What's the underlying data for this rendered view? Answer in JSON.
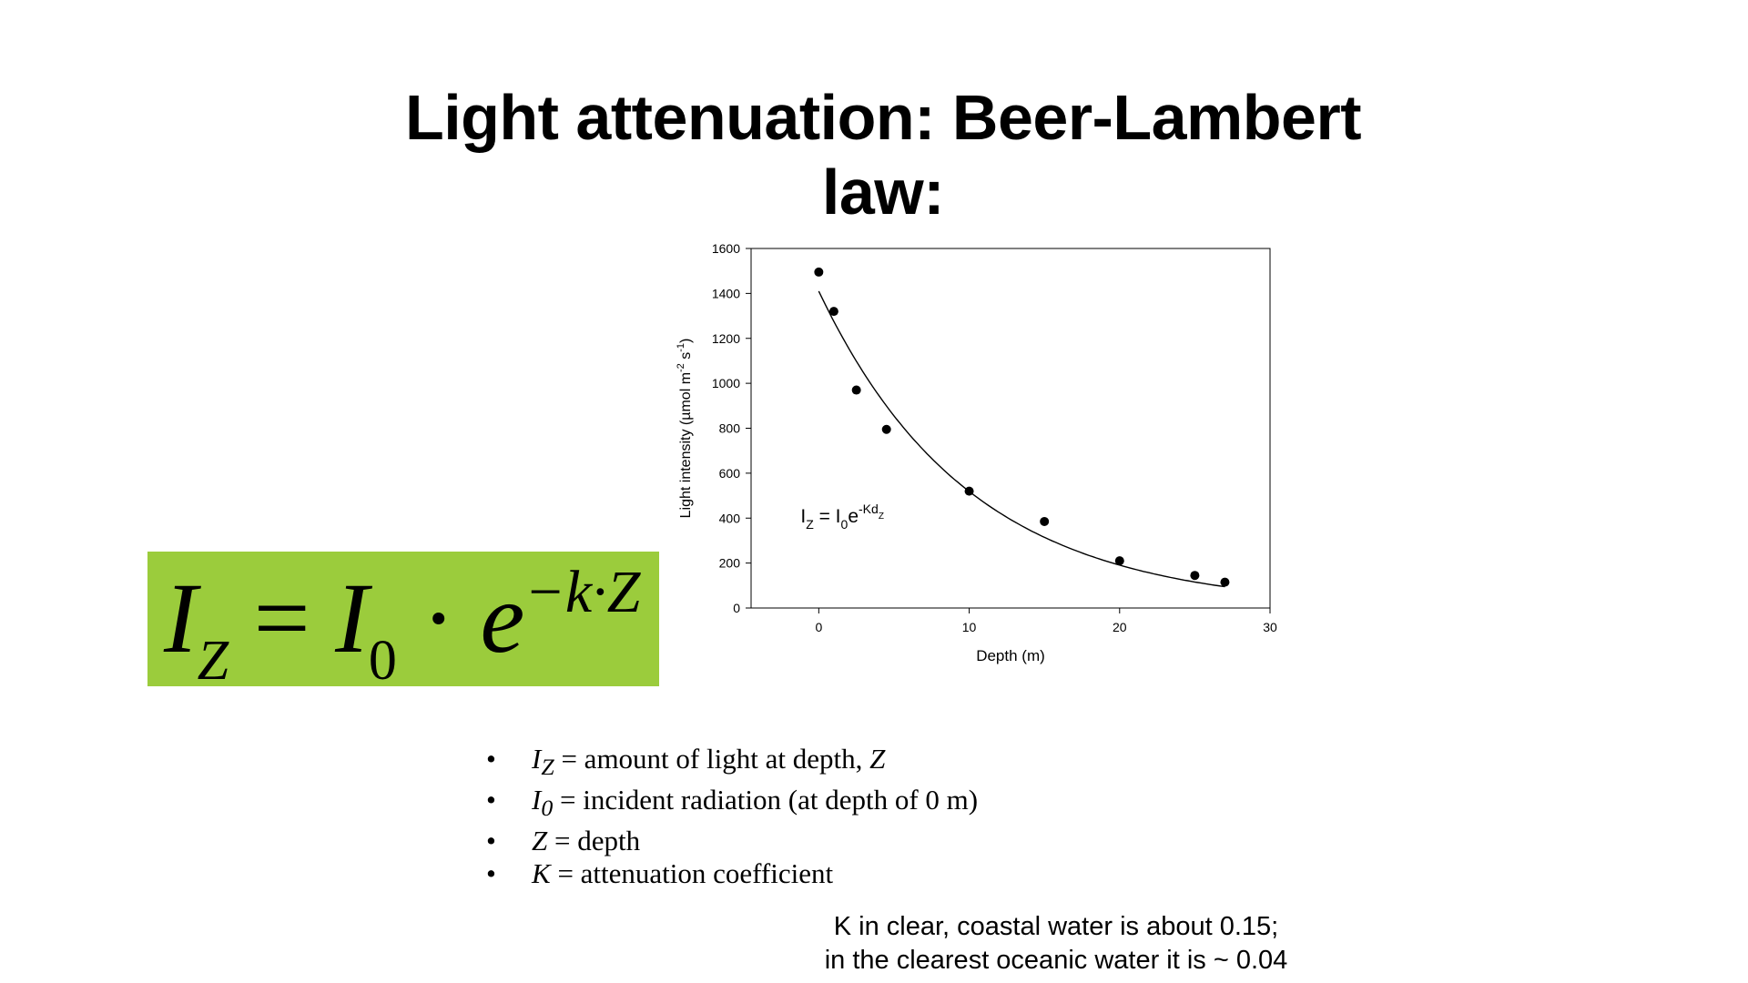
{
  "slide": {
    "title": "Light attenuation: Beer-Lambert law:",
    "formula": {
      "lhs_var": "I",
      "lhs_sub": "Z",
      "equals": "=",
      "i0_var": "I",
      "i0_sub": "0",
      "dot": "·",
      "base": "e",
      "exponent": "−k·Z",
      "background": "#9bcc3c"
    },
    "definitions": [
      {
        "var": "I",
        "sub": "Z",
        "text": "= amount of light at depth, ",
        "tail": "Z"
      },
      {
        "var": "I",
        "sub": "0",
        "text": "= incident radiation (at depth of 0 m)",
        "tail": ""
      },
      {
        "var": "Z",
        "sub": "",
        "text": "= depth",
        "tail": ""
      },
      {
        "var": "K",
        "sub": "",
        "text": "= attenuation coefficient",
        "tail": ""
      }
    ],
    "note_line1": "K in clear, coastal water is about 0.15;",
    "note_line2": "in the clearest oceanic water it is ~ 0.04"
  },
  "chart_data": {
    "type": "scatter",
    "title": "",
    "xlabel": "Depth (m)",
    "ylabel_main": "Light intensity (µmol m",
    "ylabel_sup1": "-2",
    "ylabel_mid": " s",
    "ylabel_sup2": "-1",
    "ylabel_end": ")",
    "xlim": [
      -4.5,
      30
    ],
    "ylim": [
      0,
      1600
    ],
    "xticks": [
      0,
      10,
      20,
      30
    ],
    "yticks": [
      0,
      200,
      400,
      600,
      800,
      1000,
      1200,
      1400,
      1600
    ],
    "grid": false,
    "series": [
      {
        "x": [
          0,
          1,
          2.5,
          4.5,
          10,
          15,
          20,
          25,
          27
        ],
        "y": [
          1495,
          1320,
          970,
          795,
          520,
          385,
          210,
          145,
          115
        ]
      }
    ],
    "fit": {
      "type": "exponential",
      "I0": 1410,
      "k": 0.1,
      "x_range": [
        0,
        27
      ]
    },
    "annotation": {
      "I": "I",
      "z_sub": "Z",
      "eq": " = I",
      "zero_sub": "0",
      "e": "e",
      "exp": "-Kd",
      "exp_sub": "Z",
      "x": 0,
      "y": 380
    }
  }
}
